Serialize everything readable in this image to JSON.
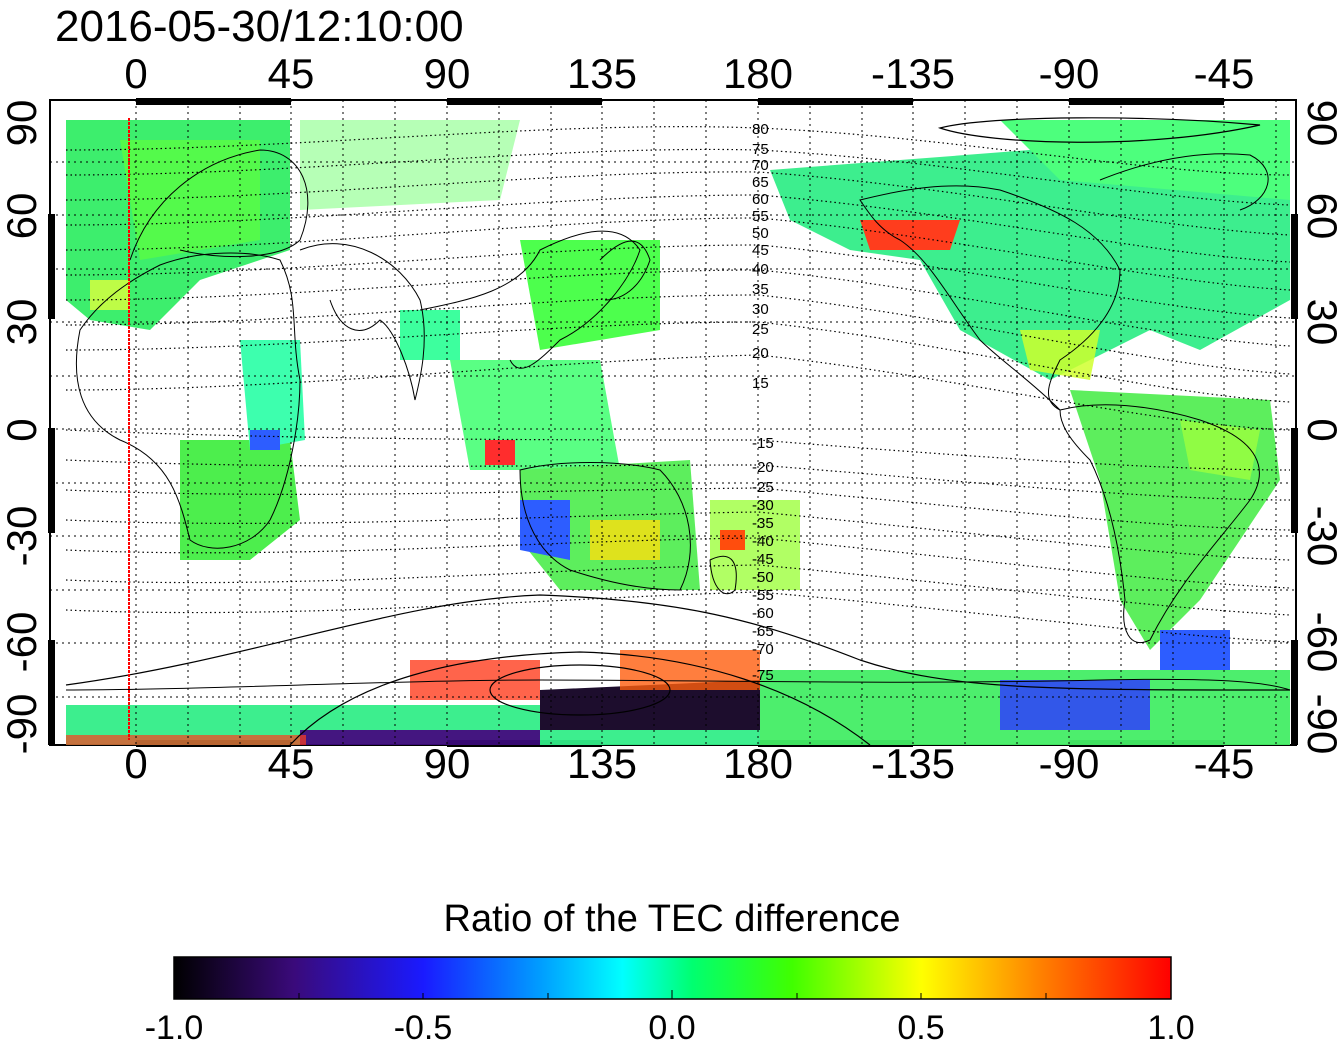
{
  "title": "2016-05-30/12:10:00",
  "map": {
    "lon_ticks": [
      "0",
      "45",
      "90",
      "135",
      "180",
      "-135",
      "-90",
      "-45"
    ],
    "lat_ticks": [
      "90",
      "60",
      "30",
      "0",
      "-30",
      "-60",
      "-90"
    ],
    "lon_range": [
      -20,
      330
    ],
    "lat_range": [
      -90,
      90
    ],
    "projection": "equirectangular",
    "grid": "dotted, every 15 degrees",
    "red_marker_longitude": -2,
    "magnetic_latitude_labels_north": [
      "80",
      "75",
      "70",
      "65",
      "60",
      "55",
      "50",
      "45",
      "40",
      "35",
      "30",
      "25",
      "20",
      "15"
    ],
    "magnetic_latitude_labels_south": [
      "-15",
      "-20",
      "-25",
      "-30",
      "-35",
      "-40",
      "-45",
      "-50",
      "-55",
      "-60",
      "-65",
      "-70",
      "-75"
    ]
  },
  "colorbar": {
    "title": "Ratio of the TEC difference",
    "ticks": [
      "-1.0",
      "-0.5",
      "0.0",
      "0.5",
      "1.0"
    ],
    "range": [
      -1.0,
      1.0
    ],
    "colors": [
      "#000000",
      "#3a0a7a",
      "#1a1aff",
      "#00ffff",
      "#00ff40",
      "#80ff00",
      "#ffff00",
      "#ff8000",
      "#ff0000"
    ]
  }
}
